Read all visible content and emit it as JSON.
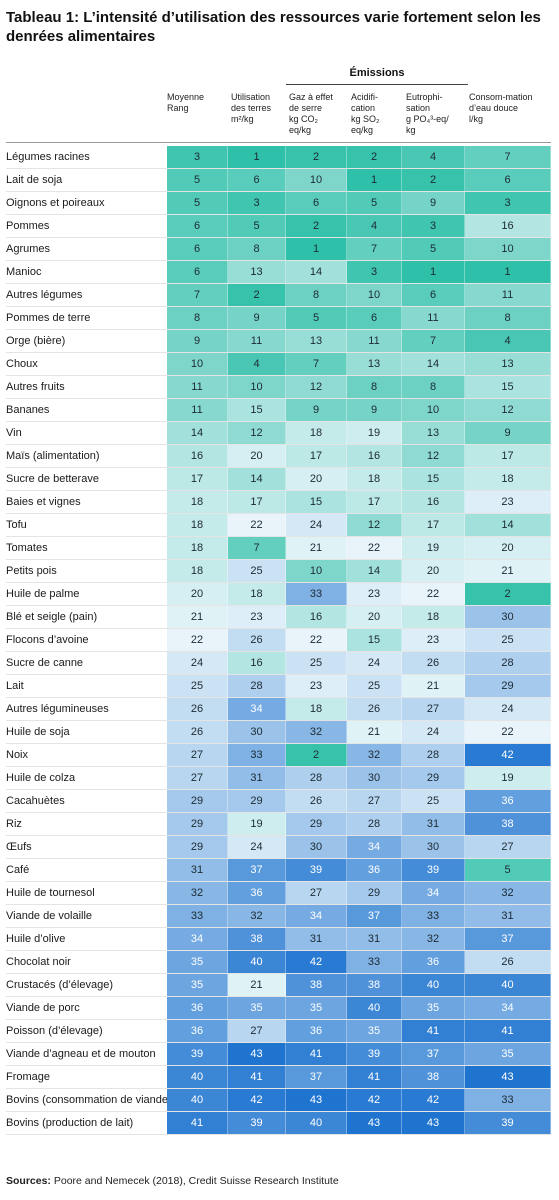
{
  "chart_data": {
    "type": "table",
    "title": "Tableau 1: L’intensité d’utilisation des ressources varie fortement selon les denrées alimentaires",
    "group_header": "Émissions",
    "columns": [
      {
        "key": "rang",
        "lines": [
          "Moyenne",
          "Rang"
        ]
      },
      {
        "key": "terres",
        "lines": [
          "Utilisation",
          "des terres",
          "m²/kg"
        ]
      },
      {
        "key": "ges",
        "lines": [
          "Gaz à effet",
          "de serre",
          "kg CO₂",
          "eq/kg"
        ]
      },
      {
        "key": "acid",
        "lines": [
          "Acidifi-",
          "cation",
          "kg SO₂",
          "eq/kg"
        ]
      },
      {
        "key": "eutro",
        "lines": [
          "Eutrophi-",
          "sation",
          "g PO₄³-eq/",
          "kg"
        ]
      },
      {
        "key": "eau",
        "lines": [
          "Consom-mation",
          "d’eau douce",
          "l/kg"
        ]
      }
    ],
    "rows": [
      {
        "label": "Légumes racines",
        "values": [
          3,
          1,
          2,
          2,
          4,
          7
        ]
      },
      {
        "label": "Lait de soja",
        "values": [
          5,
          6,
          10,
          1,
          2,
          6
        ]
      },
      {
        "label": "Oignons et poireaux",
        "values": [
          5,
          3,
          6,
          5,
          9,
          3
        ]
      },
      {
        "label": "Pommes",
        "values": [
          6,
          5,
          2,
          4,
          3,
          16
        ]
      },
      {
        "label": "Agrumes",
        "values": [
          6,
          8,
          1,
          7,
          5,
          10
        ]
      },
      {
        "label": "Manioc",
        "values": [
          6,
          13,
          14,
          3,
          1,
          1
        ]
      },
      {
        "label": "Autres légumes",
        "values": [
          7,
          2,
          8,
          10,
          6,
          11
        ]
      },
      {
        "label": "Pommes de terre",
        "values": [
          8,
          9,
          5,
          6,
          11,
          8
        ]
      },
      {
        "label": "Orge (bière)",
        "values": [
          9,
          11,
          13,
          11,
          7,
          4
        ]
      },
      {
        "label": "Choux",
        "values": [
          10,
          4,
          7,
          13,
          14,
          13
        ]
      },
      {
        "label": "Autres fruits",
        "values": [
          11,
          10,
          12,
          8,
          8,
          15
        ]
      },
      {
        "label": "Bananes",
        "values": [
          11,
          15,
          9,
          9,
          10,
          12
        ]
      },
      {
        "label": "Vin",
        "values": [
          14,
          12,
          18,
          19,
          13,
          9
        ]
      },
      {
        "label": "Maïs (alimentation)",
        "values": [
          16,
          20,
          17,
          16,
          12,
          17
        ]
      },
      {
        "label": "Sucre de betterave",
        "values": [
          17,
          14,
          20,
          18,
          15,
          18
        ]
      },
      {
        "label": "Baies et vignes",
        "values": [
          18,
          17,
          15,
          17,
          16,
          23
        ]
      },
      {
        "label": "Tofu",
        "values": [
          18,
          22,
          24,
          12,
          17,
          14
        ]
      },
      {
        "label": "Tomates",
        "values": [
          18,
          7,
          21,
          22,
          19,
          20
        ]
      },
      {
        "label": "Petits pois",
        "values": [
          18,
          25,
          10,
          14,
          20,
          21
        ]
      },
      {
        "label": "Huile de palme",
        "values": [
          20,
          18,
          33,
          23,
          22,
          2
        ]
      },
      {
        "label": "Blé et seigle (pain)",
        "values": [
          21,
          23,
          16,
          20,
          18,
          30
        ]
      },
      {
        "label": "Flocons d’avoine",
        "values": [
          22,
          26,
          22,
          15,
          23,
          25
        ]
      },
      {
        "label": "Sucre de canne",
        "values": [
          24,
          16,
          25,
          24,
          26,
          28
        ]
      },
      {
        "label": "Lait",
        "values": [
          25,
          28,
          23,
          25,
          21,
          29
        ]
      },
      {
        "label": "Autres légumineuses",
        "values": [
          26,
          34,
          18,
          26,
          27,
          24
        ]
      },
      {
        "label": "Huile de soja",
        "values": [
          26,
          30,
          32,
          21,
          24,
          22
        ]
      },
      {
        "label": "Noix",
        "values": [
          27,
          33,
          2,
          32,
          28,
          42
        ]
      },
      {
        "label": "Huile de colza",
        "values": [
          27,
          31,
          28,
          30,
          29,
          19
        ]
      },
      {
        "label": "Cacahuètes",
        "values": [
          29,
          29,
          26,
          27,
          25,
          36
        ]
      },
      {
        "label": "Riz",
        "values": [
          29,
          19,
          29,
          28,
          31,
          38
        ]
      },
      {
        "label": "Œufs",
        "values": [
          29,
          24,
          30,
          34,
          30,
          27
        ]
      },
      {
        "label": "Café",
        "values": [
          31,
          37,
          39,
          36,
          39,
          5
        ]
      },
      {
        "label": "Huile de tournesol",
        "values": [
          32,
          36,
          27,
          29,
          34,
          32
        ]
      },
      {
        "label": "Viande de volaille",
        "values": [
          33,
          32,
          34,
          37,
          33,
          31
        ]
      },
      {
        "label": "Huile d’olive",
        "values": [
          34,
          38,
          31,
          31,
          32,
          37
        ]
      },
      {
        "label": "Chocolat noir",
        "values": [
          35,
          40,
          42,
          33,
          36,
          26
        ]
      },
      {
        "label": "Crustacés (d’élevage)",
        "values": [
          35,
          21,
          38,
          38,
          40,
          40
        ]
      },
      {
        "label": "Viande de porc",
        "values": [
          36,
          35,
          35,
          40,
          35,
          34
        ]
      },
      {
        "label": "Poisson (d’élevage)",
        "values": [
          36,
          27,
          36,
          35,
          41,
          41
        ]
      },
      {
        "label": "Viande d’agneau et de mouton",
        "values": [
          39,
          43,
          41,
          39,
          37,
          35
        ]
      },
      {
        "label": "Fromage",
        "values": [
          40,
          41,
          37,
          41,
          38,
          43
        ]
      },
      {
        "label": "Bovins (consommation de viande)",
        "values": [
          40,
          42,
          43,
          42,
          42,
          33
        ]
      },
      {
        "label": "Bovins (production de lait)",
        "values": [
          41,
          39,
          40,
          43,
          43,
          39
        ]
      }
    ],
    "color_scale": {
      "low": "#2ec0a8",
      "mid": "#e8f4fa",
      "high": "#1f74d0"
    },
    "value_range": [
      1,
      43
    ]
  },
  "footer": {
    "sources_label": "Sources:",
    "sources_text": " Poore and Nemecek (2018), Credit Suisse Research Institute"
  }
}
